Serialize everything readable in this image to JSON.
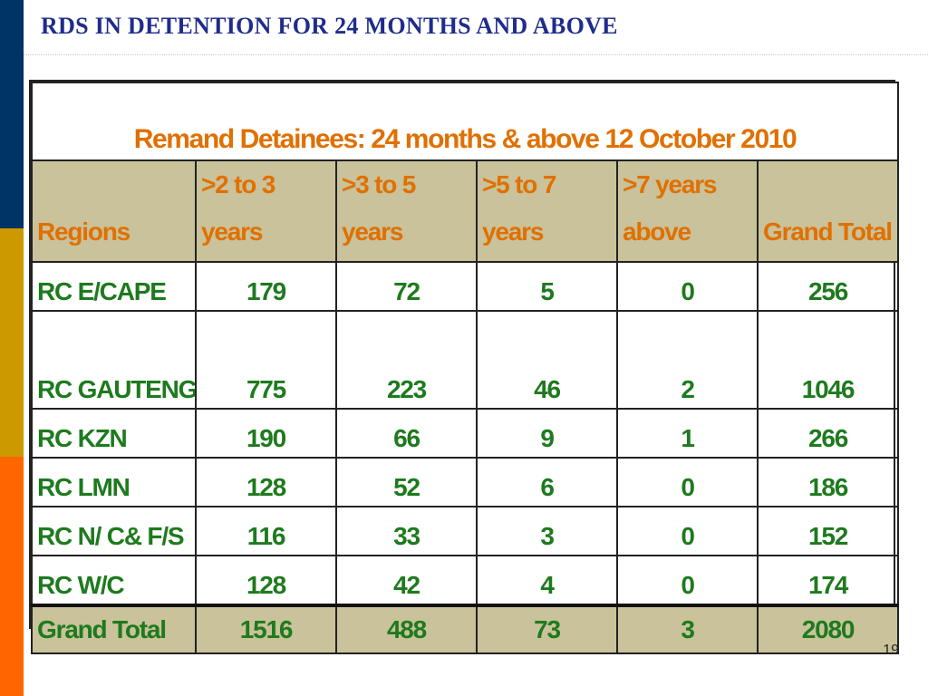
{
  "slide": {
    "title": "RDS IN DETENTION FOR 24 MONTHS AND ABOVE",
    "page_number": "19",
    "colors": {
      "title": "#1F2C8C",
      "bar_top": "#003366",
      "bar_middle": "#CC9900",
      "bar_bottom": "#FF6600",
      "header_fill": "#C9C29A",
      "header_text": "#E07000",
      "body_text": "#1E7A1E"
    }
  },
  "chart_data": {
    "type": "table",
    "title": "Remand Detainees: 24 months & above 12 October 2010",
    "columns": [
      {
        "line1": "",
        "line2": "Regions"
      },
      {
        "line1": ">2 to 3",
        "line2": "years"
      },
      {
        "line1": ">3 to 5",
        "line2": "years"
      },
      {
        "line1": ">5 to 7",
        "line2": "years"
      },
      {
        "line1": ">7 years",
        "line2": "above"
      },
      {
        "line1": "",
        "line2": "Grand Total"
      }
    ],
    "rows": [
      {
        "region": "RC E/CAPE",
        "values": [
          179,
          72,
          5,
          0,
          256
        ],
        "tall": false
      },
      {
        "region": "RC GAUTENG",
        "values": [
          775,
          223,
          46,
          2,
          1046
        ],
        "tall": true
      },
      {
        "region": "RC KZN",
        "values": [
          190,
          66,
          9,
          1,
          266
        ],
        "tall": false
      },
      {
        "region": "RC LMN",
        "values": [
          128,
          52,
          6,
          0,
          186
        ],
        "tall": false
      },
      {
        "region": "RC N/ C& F/S",
        "values": [
          116,
          33,
          3,
          0,
          152
        ],
        "tall": false
      },
      {
        "region": "RC W/C",
        "values": [
          128,
          42,
          4,
          0,
          174
        ],
        "tall": false
      }
    ],
    "total": {
      "label": "Grand Total",
      "values": [
        1516,
        488,
        73,
        3,
        2080
      ]
    }
  }
}
